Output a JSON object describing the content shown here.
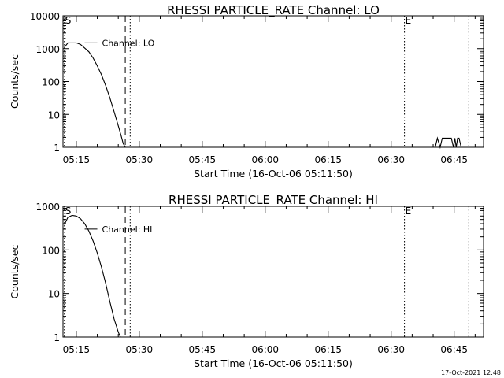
{
  "footer": {
    "timestamp": "17-Oct-2021 12:48"
  },
  "chart_data": [
    {
      "type": "line",
      "title": "RHESSI PARTICLE_RATE Channel: LO",
      "xlabel": "Start Time (16-Oct-06 05:11:50)",
      "ylabel": "Counts/sec",
      "yscale": "log",
      "ylim": [
        1,
        10000
      ],
      "xlim": [
        "05:11:50",
        "06:52:00"
      ],
      "ytick_labels": [
        "1",
        "10",
        "100",
        "1000",
        "10000"
      ],
      "xtick_labels": [
        "05:15",
        "05:30",
        "05:45",
        "06:00",
        "06:15",
        "06:30",
        "06:45"
      ],
      "legend": "Channel: LO",
      "markers": [
        {
          "label": "S",
          "time": "05:12:10",
          "style": "dotted-label"
        },
        {
          "label": "",
          "time": "05:26:40",
          "style": "dashed"
        },
        {
          "label": "",
          "time": "05:27:50",
          "style": "dotted"
        },
        {
          "label": "E",
          "time": "06:33:10",
          "style": "dotted-label"
        },
        {
          "label": "",
          "time": "06:48:30",
          "style": "dotted"
        }
      ],
      "series": [
        {
          "x": [
            "05:12:10",
            "05:13:00",
            "05:14:00",
            "05:15:00",
            "05:16:00",
            "05:17:00",
            "05:18:00",
            "05:19:00",
            "05:20:00",
            "05:21:00",
            "05:22:00",
            "05:23:00",
            "05:24:00",
            "05:25:00",
            "05:25:40",
            "05:26:10",
            "05:26:40"
          ],
          "y": [
            1100,
            1500,
            1500,
            1500,
            1350,
            1050,
            800,
            520,
            300,
            160,
            75,
            32,
            12,
            4.5,
            2.3,
            1.3,
            1.0
          ]
        },
        {
          "x": [
            "06:40:30",
            "06:41:00",
            "06:41:40",
            "06:42:10",
            "06:44:20",
            "06:44:50",
            "06:45:10",
            "06:45:30",
            "06:45:50",
            "06:46:10",
            "06:46:40"
          ],
          "y": [
            1,
            1.9,
            1,
            1.9,
            1.9,
            1,
            1.9,
            1,
            1.9,
            1.9,
            1
          ]
        }
      ]
    },
    {
      "type": "line",
      "title": "RHESSI PARTICLE_RATE Channel: HI",
      "xlabel": "Start Time (16-Oct-06 05:11:50)",
      "ylabel": "Counts/sec",
      "yscale": "log",
      "ylim": [
        1,
        1000
      ],
      "xlim": [
        "05:11:50",
        "06:52:00"
      ],
      "ytick_labels": [
        "1",
        "10",
        "100",
        "1000"
      ],
      "xtick_labels": [
        "05:15",
        "05:30",
        "05:45",
        "06:00",
        "06:15",
        "06:30",
        "06:45"
      ],
      "legend": "Channel: HI",
      "markers": [
        {
          "label": "S",
          "time": "05:12:10",
          "style": "dotted-label"
        },
        {
          "label": "",
          "time": "05:26:40",
          "style": "dashed"
        },
        {
          "label": "",
          "time": "05:27:50",
          "style": "dotted"
        },
        {
          "label": "E",
          "time": "06:33:10",
          "style": "dotted-label"
        },
        {
          "label": "",
          "time": "06:48:30",
          "style": "dotted"
        }
      ],
      "series": [
        {
          "x": [
            "05:12:10",
            "05:13:00",
            "05:14:00",
            "05:15:00",
            "05:16:00",
            "05:17:00",
            "05:18:00",
            "05:19:00",
            "05:20:00",
            "05:21:00",
            "05:22:00",
            "05:23:00",
            "05:24:00",
            "05:25:00",
            "05:25:30"
          ],
          "y": [
            380,
            560,
            620,
            600,
            520,
            400,
            270,
            160,
            85,
            40,
            17,
            6.5,
            2.6,
            1.3,
            1.0
          ]
        }
      ]
    }
  ]
}
